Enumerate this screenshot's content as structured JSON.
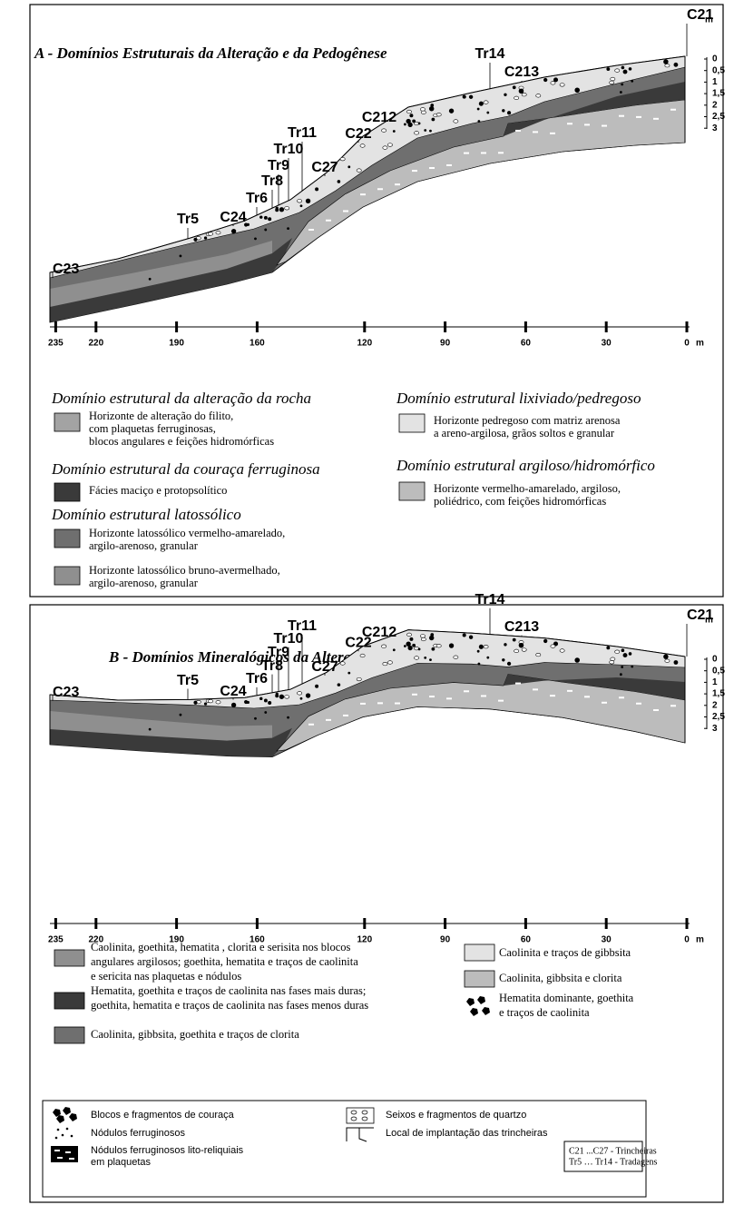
{
  "panel_a": {
    "title": "A - Domínios Estruturais da Alteração e da Pedogênese",
    "profile_labels": [
      "C21",
      "Tr14",
      "C213",
      "C212",
      "C22",
      "Tr11",
      "Tr10",
      "Tr9",
      "Tr8",
      "C27",
      "Tr6",
      "C24",
      "Tr5",
      "C23"
    ],
    "depth_scale": {
      "unit": "m",
      "labels": [
        "0",
        "0,5",
        "1",
        "1,5",
        "2",
        "2,5",
        "3"
      ]
    },
    "distance_scale": {
      "ticks": [
        235,
        220,
        190,
        160,
        120,
        90,
        60,
        30,
        0
      ],
      "unit": "m"
    },
    "legend": [
      {
        "heading": "Domínio estrutural da alteração da rocha",
        "items": [
          {
            "lines": [
              "Horizonte de alteração do filito,",
              "com plaquetas ferruginosas,",
              "blocos angulares e feições hidromórficas"
            ]
          }
        ]
      },
      {
        "heading": "Domínio estrutural da couraça ferruginosa",
        "items": [
          {
            "lines": [
              "Fácies maciço e protopsolítico"
            ]
          }
        ]
      },
      {
        "heading": "Domínio estrutural latossólico",
        "items": [
          {
            "lines": [
              "Horizonte latossólico vermelho-amarelado,",
              "argilo-arenoso, granular"
            ]
          },
          {
            "lines": [
              "Horizonte latossólico bruno-avermelhado,",
              "argilo-arenoso, granular"
            ]
          }
        ]
      },
      {
        "heading": "Domínio estrutural  lixiviado/pedregoso",
        "items": [
          {
            "lines": [
              "Horizonte pedregoso com matriz arenosa",
              "a areno-argilosa, grãos soltos e granular"
            ]
          }
        ]
      },
      {
        "heading": "Domínio estrutural  argiloso/hidromórfico",
        "items": [
          {
            "lines": [
              "Horizonte vermelho-amarelado, argiloso,",
              "poliédrico, com feições hidromórficas"
            ]
          }
        ]
      }
    ]
  },
  "panel_b": {
    "title": "B - Domínios Mineralógicos da Alteração e da Pedogênese",
    "profile_labels": [
      "C21",
      "Tr14",
      "C213",
      "C212",
      "C22",
      "Tr11",
      "Tr10",
      "Tr9",
      "Tr8",
      "C27",
      "Tr6",
      "C24",
      "Tr5",
      "C23"
    ],
    "depth_scale": {
      "unit": "m",
      "labels": [
        "0",
        "0,5",
        "1",
        "1,5",
        "2",
        "2,5",
        "3"
      ]
    },
    "distance_scale": {
      "ticks": [
        235,
        220,
        190,
        160,
        120,
        90,
        60,
        30,
        0
      ],
      "unit": "m"
    },
    "legend": [
      {
        "lines": [
          "Caolinita, goethita, hematita , clorita e serisita nos blocos",
          "angulares argilosos; goethita, hematita e traços de caolinita",
          "e sericita nas plaquetas e nódulos"
        ]
      },
      {
        "lines": [
          "Hematita, goethita e traços de caolinita nas fases mais duras;",
          "goethita, hematita e traços de caolinita nas fases menos duras"
        ]
      },
      {
        "lines": [
          "Caolinita, gibbsita, goethita e traços de clorita"
        ]
      },
      {
        "lines": [
          "Caolinita e traços de gibbsita"
        ]
      },
      {
        "lines": [
          "Caolinita, gibbsita e clorita"
        ]
      },
      {
        "lines": [
          "Hematita dominante, goethita",
          "e traços de caolinita"
        ]
      }
    ]
  },
  "symbols": [
    {
      "lines": [
        "Blocos e fragmentos de couraça"
      ]
    },
    {
      "lines": [
        "Nódulos ferruginosos"
      ]
    },
    {
      "lines": [
        "Nódulos ferruginosos lito-reliquiais",
        "em plaquetas"
      ]
    },
    {
      "lines": [
        "Seixos e fragmentos de quartzo"
      ]
    },
    {
      "lines": [
        "Local de implantação das trincheiras"
      ]
    }
  ],
  "abbreviations": [
    "C21 ...C27 - Trincheiras",
    "Tr5 … Tr14 - Tradagens"
  ]
}
